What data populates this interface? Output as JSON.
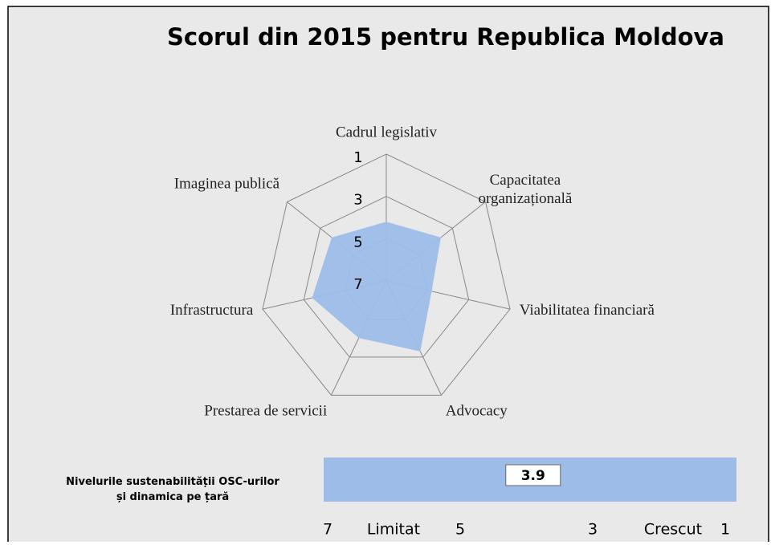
{
  "chart_data": [
    {
      "type": "radar",
      "title": "Scorul din 2015 pentru Republica Moldova",
      "categories": [
        "Cadrul legislativ",
        "Capacitatea organizațională",
        "Viabilitatea financiară",
        "Advocacy",
        "Prestarea de servicii",
        "Infrastructura",
        "Imaginea publică"
      ],
      "series": [
        {
          "color": "#9dbde8",
          "values": [
            4.2,
            3.7,
            4.8,
            3.3,
            4.0,
            3.4,
            3.7
          ]
        }
      ],
      "rlim": [
        7,
        1
      ],
      "rticks": [
        1,
        3,
        5,
        7
      ],
      "grid": true
    },
    {
      "type": "bar",
      "title": "Nivelurile sustenabilității OSC-urilor și dinamica pe țară",
      "values": [
        3.9
      ],
      "color": "#9dbde8",
      "xlim": [
        7,
        1
      ],
      "xticks": [
        7,
        5,
        3,
        1
      ],
      "annotations": [
        "Limitat",
        "Crescut"
      ]
    }
  ]
}
